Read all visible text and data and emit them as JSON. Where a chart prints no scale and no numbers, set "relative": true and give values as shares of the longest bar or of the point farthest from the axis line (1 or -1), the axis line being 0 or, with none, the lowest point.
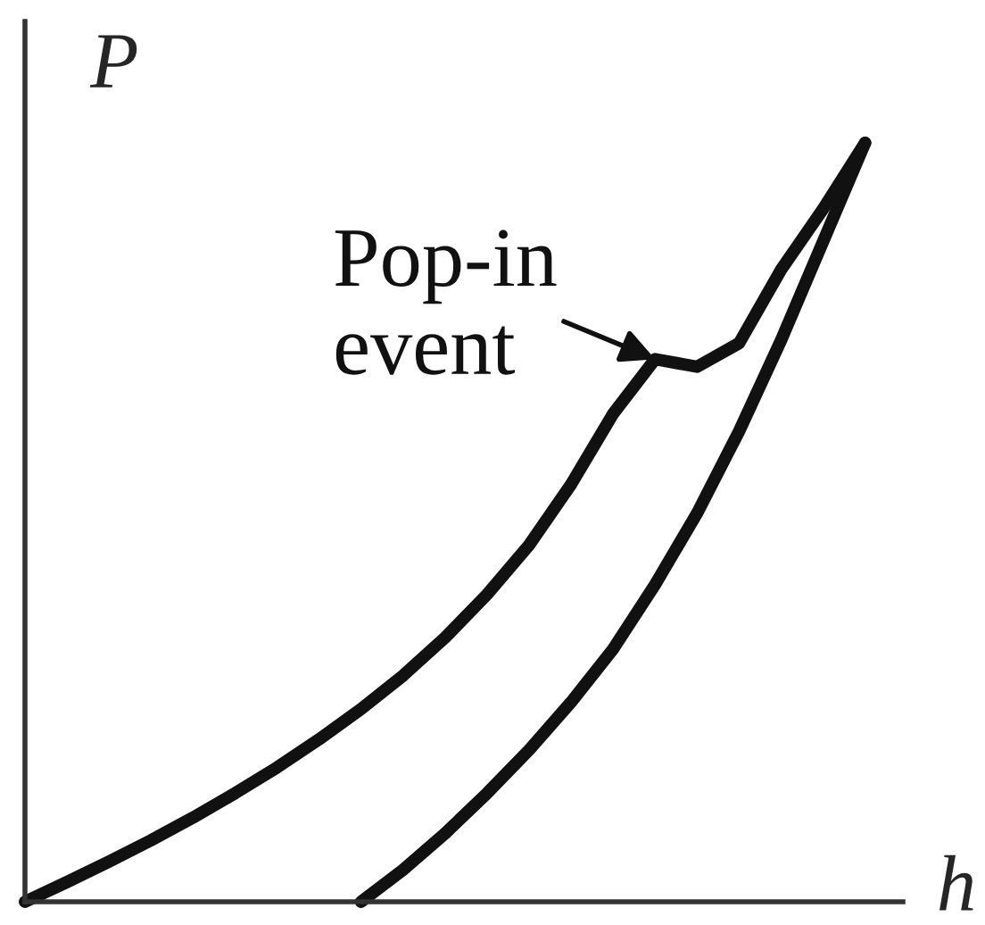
{
  "chart_data": {
    "type": "line",
    "relative": true,
    "xlabel": "h",
    "ylabel": "P",
    "annotations": [
      "Pop-in\nevent"
    ],
    "categories": [
      null,
      null,
      null,
      null,
      null,
      null,
      null,
      null,
      null,
      null,
      null,
      null,
      null,
      null,
      null,
      null,
      null,
      null,
      null,
      null,
      null
    ],
    "series": [
      {
        "color": "#111111",
        "values": [
          0,
          0.026,
          0.053,
          0.081,
          0.111,
          0.143,
          0.177,
          0.214,
          0.254,
          0.298,
          0.348,
          0.405,
          0.47,
          0.55,
          0.643,
          0.715,
          0.705,
          0.736,
          0.833,
          0.913,
          1
        ]
      },
      {
        "color": "#111111",
        "values": [
          null,
          null,
          null,
          null,
          null,
          null,
          null,
          null,
          0,
          0.042,
          0.09,
          0.143,
          0.2,
          0.263,
          0.333,
          0.418,
          0.512,
          0.62,
          0.74,
          0.87,
          1
        ]
      }
    ],
    "marker": "none",
    "line_style": "solid"
  }
}
